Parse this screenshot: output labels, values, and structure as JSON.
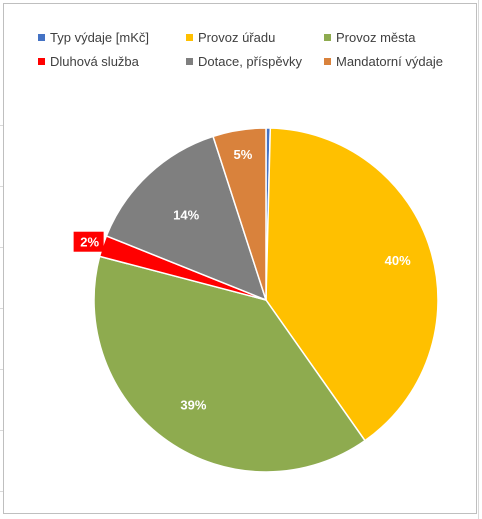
{
  "chart_data": {
    "type": "pie",
    "title": "",
    "legend_position": "top",
    "series": [
      {
        "name": "Typ výdaje  [mKč]",
        "value": 0.4,
        "label": "",
        "color": "#4472C4"
      },
      {
        "name": "Provoz úřadu",
        "value": 40,
        "label": "40%",
        "color": "#FFC000"
      },
      {
        "name": "Provoz města",
        "value": 39,
        "label": "39%",
        "color": "#8EAB4F"
      },
      {
        "name": "Dluhová služba",
        "value": 2,
        "label": "2%",
        "color": "#FF0000"
      },
      {
        "name": "Dotace, příspěvky",
        "value": 14,
        "label": "14%",
        "color": "#7F7F7F"
      },
      {
        "name": "Mandatorní výdaje",
        "value": 5,
        "label": "5%",
        "color": "#D9823C"
      }
    ]
  }
}
